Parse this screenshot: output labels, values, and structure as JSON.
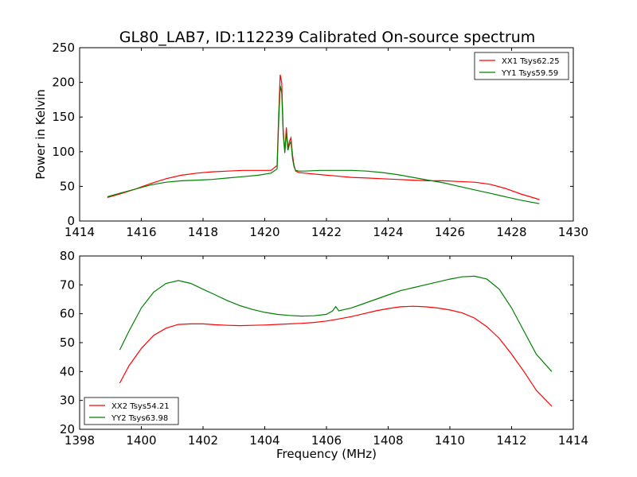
{
  "figure": {
    "title": "GL80_LAB7, ID:112239 Calibrated On-source spectrum"
  },
  "chart_data": [
    {
      "type": "line",
      "title": "GL80_LAB7, ID:112239 Calibrated On-source spectrum",
      "xlabel": "",
      "ylabel": "Power in Kelvin",
      "xlim": [
        1414,
        1430
      ],
      "ylim": [
        0,
        250
      ],
      "xticks": [
        "1414",
        "1416",
        "1418",
        "1420",
        "1422",
        "1424",
        "1426",
        "1428",
        "1430"
      ],
      "yticks": [
        "0",
        "50",
        "100",
        "150",
        "200",
        "250"
      ],
      "grid": false,
      "legend_position": "top-right",
      "series": [
        {
          "name": "XX1 Tsys62.25",
          "color": "#ff0000",
          "x": [
            1414.9,
            1415.3,
            1415.8,
            1416.3,
            1416.8,
            1417.3,
            1417.8,
            1418.3,
            1418.8,
            1419.3,
            1419.8,
            1420.2,
            1420.4,
            1420.45,
            1420.5,
            1420.55,
            1420.6,
            1420.65,
            1420.7,
            1420.75,
            1420.8,
            1420.85,
            1420.9,
            1420.95,
            1421.0,
            1421.1,
            1421.3,
            1421.8,
            1422.3,
            1422.8,
            1423.3,
            1423.8,
            1424.3,
            1424.8,
            1425.3,
            1425.8,
            1426.3,
            1426.8,
            1427.3,
            1427.8,
            1428.3,
            1428.9
          ],
          "y": [
            34,
            39,
            46,
            54,
            61,
            66,
            69,
            71,
            72,
            73,
            73,
            73,
            80,
            150,
            211,
            200,
            130,
            100,
            135,
            105,
            115,
            120,
            95,
            80,
            72,
            70,
            69,
            67,
            65,
            63,
            62,
            61,
            60,
            59,
            58,
            58,
            57,
            56,
            53,
            47,
            39,
            31
          ]
        },
        {
          "name": "YY1 Tsys59.59",
          "color": "#008000",
          "x": [
            1414.9,
            1415.3,
            1415.8,
            1416.3,
            1416.8,
            1417.3,
            1417.8,
            1418.3,
            1418.8,
            1419.3,
            1419.8,
            1420.2,
            1420.4,
            1420.45,
            1420.5,
            1420.55,
            1420.6,
            1420.65,
            1420.7,
            1420.75,
            1420.8,
            1420.85,
            1420.9,
            1420.95,
            1421.0,
            1421.1,
            1421.3,
            1421.8,
            1422.3,
            1422.8,
            1423.3,
            1423.8,
            1424.3,
            1424.8,
            1425.3,
            1425.8,
            1426.3,
            1426.8,
            1427.3,
            1427.8,
            1428.3,
            1428.9
          ],
          "y": [
            35,
            40,
            46,
            52,
            56,
            58,
            59,
            60,
            62,
            64,
            66,
            69,
            75,
            140,
            195,
            185,
            125,
            98,
            128,
            102,
            110,
            115,
            90,
            78,
            73,
            72,
            72,
            73,
            73,
            73,
            72,
            70,
            67,
            63,
            59,
            55,
            50,
            45,
            40,
            35,
            30,
            25
          ]
        }
      ]
    },
    {
      "type": "line",
      "title": "",
      "xlabel": "Frequency (MHz)",
      "ylabel": "",
      "xlim": [
        1398,
        1414
      ],
      "ylim": [
        20,
        80
      ],
      "xticks": [
        "1398",
        "1400",
        "1402",
        "1404",
        "1406",
        "1408",
        "1410",
        "1412",
        "1414"
      ],
      "yticks": [
        "20",
        "30",
        "40",
        "50",
        "60",
        "70",
        "80"
      ],
      "grid": false,
      "legend_position": "bottom-left",
      "series": [
        {
          "name": "XX2 Tsys54.21",
          "color": "#ff0000",
          "x": [
            1399.3,
            1399.6,
            1400.0,
            1400.4,
            1400.8,
            1401.2,
            1401.6,
            1402.0,
            1402.4,
            1402.8,
            1403.2,
            1403.6,
            1404.0,
            1404.4,
            1404.8,
            1405.2,
            1405.6,
            1406.0,
            1406.4,
            1406.8,
            1407.2,
            1407.6,
            1408.0,
            1408.4,
            1408.8,
            1409.2,
            1409.6,
            1410.0,
            1410.4,
            1410.8,
            1411.2,
            1411.6,
            1412.0,
            1412.4,
            1412.8,
            1413.3
          ],
          "y": [
            36,
            42,
            48,
            52.5,
            55,
            56.3,
            56.5,
            56.5,
            56.2,
            56,
            55.9,
            56,
            56.1,
            56.3,
            56.5,
            56.7,
            57,
            57.5,
            58.2,
            59,
            60,
            61,
            61.8,
            62.4,
            62.6,
            62.4,
            62,
            61.3,
            60.3,
            58.5,
            55.5,
            51.5,
            46,
            40,
            33.5,
            28
          ]
        },
        {
          "name": "YY2 Tsys63.98",
          "color": "#008000",
          "x": [
            1399.3,
            1399.6,
            1400.0,
            1400.4,
            1400.8,
            1401.2,
            1401.6,
            1402.0,
            1402.4,
            1402.8,
            1403.2,
            1403.6,
            1404.0,
            1404.4,
            1404.8,
            1405.2,
            1405.6,
            1406.0,
            1406.2,
            1406.3,
            1406.4,
            1406.8,
            1407.2,
            1407.6,
            1408.0,
            1408.4,
            1408.8,
            1409.2,
            1409.6,
            1410.0,
            1410.4,
            1410.8,
            1411.2,
            1411.6,
            1412.0,
            1412.4,
            1412.8,
            1413.3
          ],
          "y": [
            47.5,
            54,
            62,
            67.5,
            70.5,
            71.5,
            70.5,
            68.5,
            66.5,
            64.5,
            62.8,
            61.5,
            60.5,
            59.8,
            59.4,
            59.2,
            59.3,
            59.8,
            61,
            62.5,
            61,
            62,
            63.5,
            65,
            66.5,
            68,
            69,
            70,
            71,
            72,
            72.8,
            73,
            72,
            68.5,
            62,
            54,
            46,
            40
          ]
        }
      ]
    }
  ]
}
